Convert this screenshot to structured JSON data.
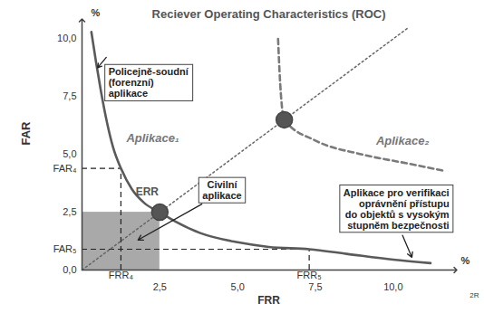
{
  "chart_data": {
    "type": "line",
    "title": "Reciever Operating Characteristics (ROC)",
    "x_label": "FRR",
    "y_label": "FAR",
    "x_unit": "%",
    "y_unit": "%",
    "xlim": [
      0,
      12
    ],
    "ylim": [
      0,
      10.8
    ],
    "xticks": [
      {
        "value": 1.25,
        "label": "FRR₄"
      },
      {
        "value": 2.5,
        "label": "2,5"
      },
      {
        "value": 5,
        "label": "5,0"
      },
      {
        "value": 7.3,
        "label": "FRR₅"
      },
      {
        "value": 7.5,
        "label": "7,5"
      },
      {
        "value": 10,
        "label": "10,0"
      }
    ],
    "yticks": [
      {
        "value": 0,
        "label": "0,0"
      },
      {
        "value": 0.9,
        "label": "FAR₅"
      },
      {
        "value": 2.5,
        "label": "2,5"
      },
      {
        "value": 4.4,
        "label": "FAR₄"
      },
      {
        "value": 5,
        "label": "5,0"
      },
      {
        "value": 7.5,
        "label": "7,5"
      },
      {
        "value": 10,
        "label": "10,0"
      }
    ],
    "grid": false,
    "series": [
      {
        "name": "Aplikace₁",
        "color": "#5a5a5a",
        "line_style": "solid",
        "x": [
          0.3,
          0.45,
          0.6,
          0.8,
          1.0,
          1.25,
          1.6,
          2.0,
          2.5,
          3.0,
          3.8,
          5.0,
          6.0,
          7.3,
          8.5,
          10.0,
          11.2
        ],
        "values": [
          10.3,
          9.0,
          7.8,
          6.4,
          5.3,
          4.4,
          3.5,
          2.9,
          2.5,
          2.1,
          1.6,
          1.2,
          1.0,
          0.9,
          0.7,
          0.45,
          0.3
        ]
      },
      {
        "name": "Aplikace₂",
        "color": "#7a7a7a",
        "line_style": "dashed",
        "x": [
          6.3,
          6.35,
          6.5,
          7.5,
          9.0,
          10.5,
          11.6
        ],
        "values": [
          10.0,
          8.5,
          6.5,
          5.6,
          5.0,
          4.6,
          4.3
        ]
      }
    ],
    "diagonal": {
      "x": [
        0,
        10.5
      ],
      "values": [
        0,
        10.5
      ],
      "color": "#666666",
      "line_style": "dotted"
    },
    "points": [
      {
        "x": 2.5,
        "y": 2.5,
        "label": "ERR",
        "color": "#555555"
      },
      {
        "x": 6.5,
        "y": 6.5,
        "color": "#555555"
      }
    ],
    "shaded_region": {
      "x": [
        0,
        2.5
      ],
      "y": [
        0,
        2.5
      ],
      "color": "#9a9a9a"
    },
    "reference_lines": [
      {
        "x": 1.25,
        "y": 4.4,
        "line_style": "dashed"
      },
      {
        "x": 7.3,
        "y": 0.9,
        "line_style": "dashed"
      }
    ],
    "annotations": [
      {
        "text": "Policejně-soudní\n(forenzní)\naplikace"
      },
      {
        "text": "Civilní\naplikace"
      },
      {
        "text": "Aplikace pro verifikaci\noprávnění přístupu\ndo objektů s vysokým\nstupněm bezpečnosti"
      }
    ],
    "footnote": "2R"
  }
}
